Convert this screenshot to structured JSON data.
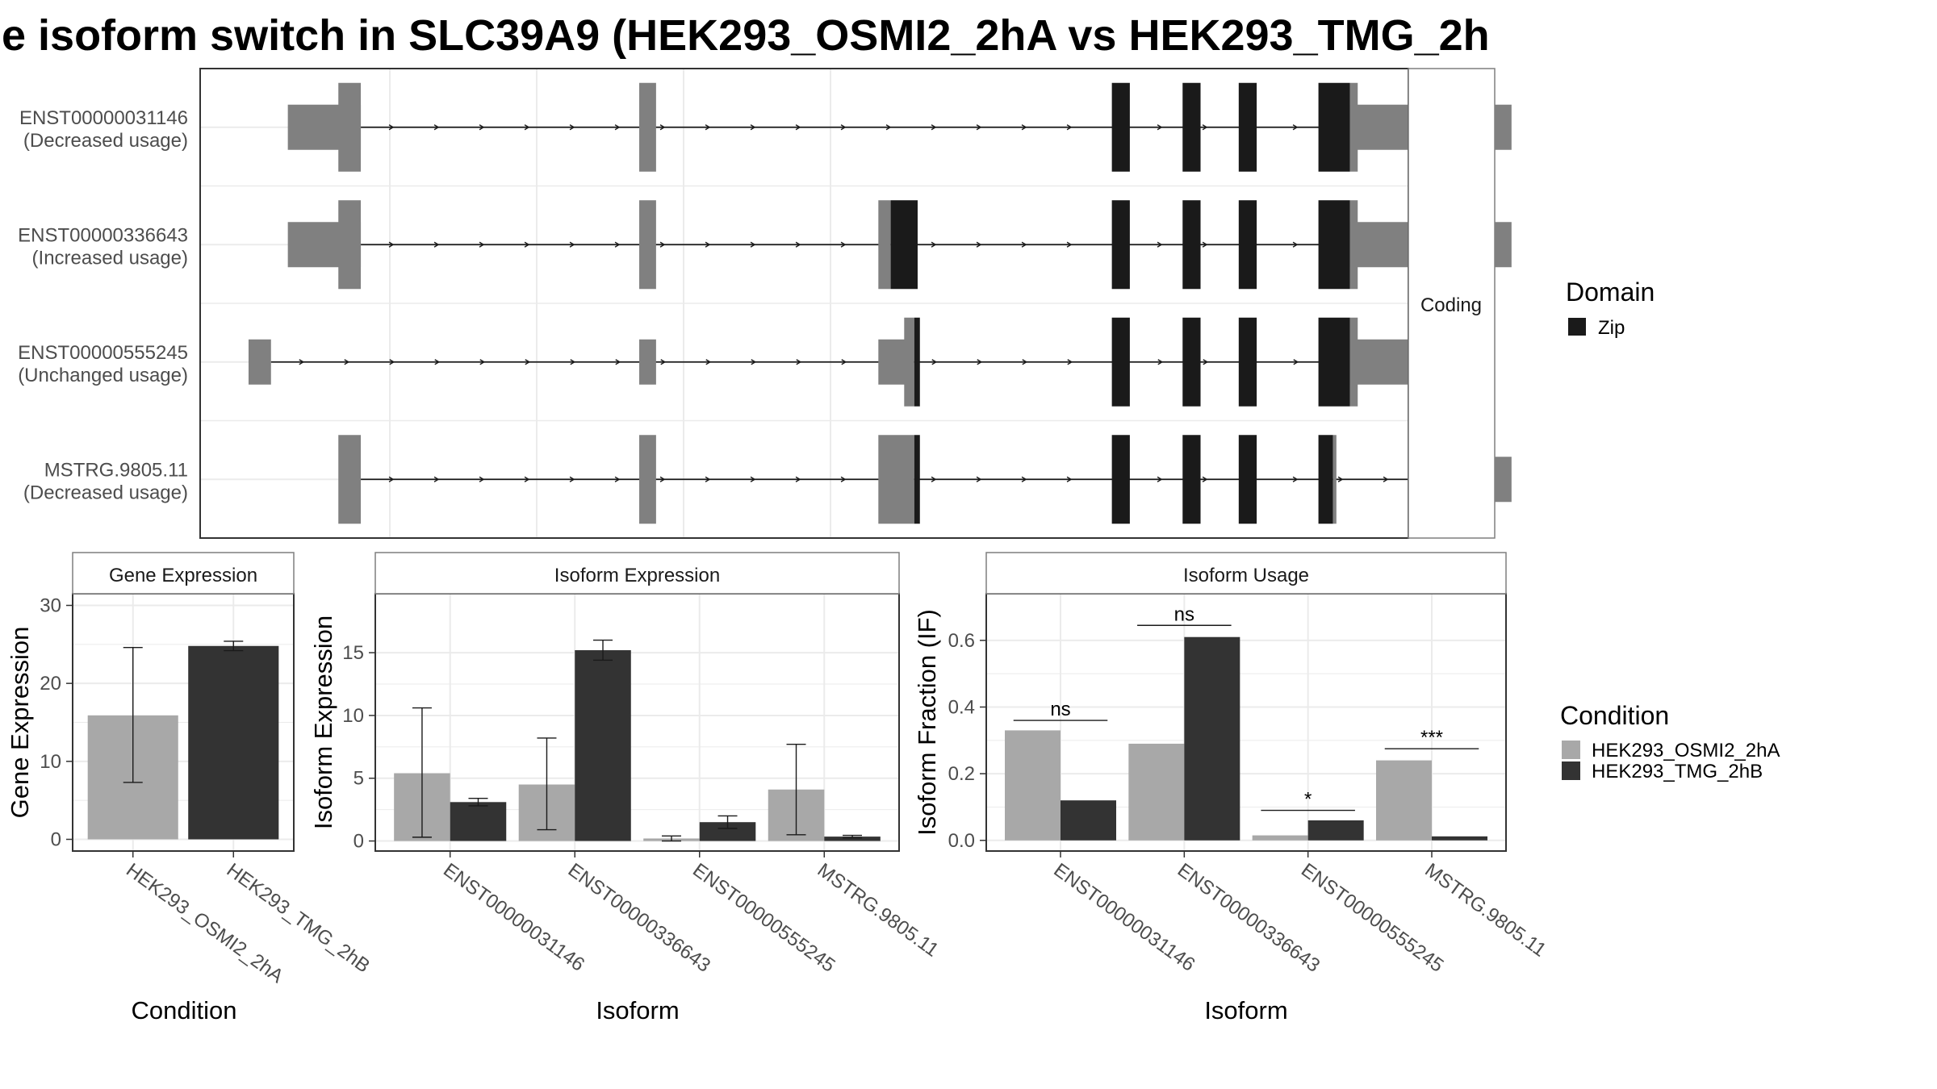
{
  "title": "e isoform switch in SLC39A9 (HEK293_OSMI2_2hA vs HEK293_TMG_2h",
  "colors": {
    "cond_a": "#a8a8a8",
    "cond_b": "#333333",
    "exon": "#808080",
    "domain_zip": "#1a1a1a",
    "grid": "#ebebeb",
    "frame": "#333333",
    "strip_bg": "#ffffff",
    "strip_border": "#7f7f7f"
  },
  "chart_data": [
    {
      "type": "gene_structure",
      "facet_label": "Coding",
      "legend": {
        "title": "Domain",
        "items": [
          {
            "label": "Zip",
            "color": "#1a1a1a"
          }
        ]
      },
      "x_range": [
        0,
        1000
      ],
      "transcripts": [
        {
          "id": "ENST00000031146",
          "status": "(Decreased usage)",
          "intron": [
            105,
            1000
          ],
          "exons": [
            {
              "s": 40,
              "e": 105,
              "h": "mid",
              "t": "exon"
            },
            {
              "s": 85,
              "e": 105,
              "h": "tall",
              "t": "exon"
            },
            {
              "s": 353,
              "e": 368,
              "h": "tall",
              "t": "exon"
            },
            {
              "s": 774,
              "e": 790,
              "h": "tall",
              "t": "zip"
            },
            {
              "s": 837,
              "e": 853,
              "h": "tall",
              "t": "zip"
            },
            {
              "s": 887,
              "e": 903,
              "h": "tall",
              "t": "zip"
            },
            {
              "s": 958,
              "e": 986,
              "h": "tall",
              "t": "zip"
            },
            {
              "s": 986,
              "e": 1130,
              "h": "mid",
              "t": "exon"
            },
            {
              "s": 986,
              "e": 993,
              "h": "tall",
              "t": "exon"
            }
          ]
        },
        {
          "id": "ENST00000336643",
          "status": "(Increased usage)",
          "intron": [
            105,
            1000
          ],
          "exons": [
            {
              "s": 40,
              "e": 105,
              "h": "mid",
              "t": "exon"
            },
            {
              "s": 85,
              "e": 105,
              "h": "tall",
              "t": "exon"
            },
            {
              "s": 353,
              "e": 368,
              "h": "tall",
              "t": "exon"
            },
            {
              "s": 566,
              "e": 577,
              "h": "tall",
              "t": "exon"
            },
            {
              "s": 577,
              "e": 601,
              "h": "tall",
              "t": "zip"
            },
            {
              "s": 774,
              "e": 790,
              "h": "tall",
              "t": "zip"
            },
            {
              "s": 837,
              "e": 853,
              "h": "tall",
              "t": "zip"
            },
            {
              "s": 887,
              "e": 903,
              "h": "tall",
              "t": "zip"
            },
            {
              "s": 958,
              "e": 986,
              "h": "tall",
              "t": "zip"
            },
            {
              "s": 986,
              "e": 1130,
              "h": "mid",
              "t": "exon"
            },
            {
              "s": 986,
              "e": 993,
              "h": "tall",
              "t": "exon"
            }
          ]
        },
        {
          "id": "ENST00000555245",
          "status": "(Unchanged usage)",
          "intron": [
            25,
            1000
          ],
          "exons": [
            {
              "s": 5,
              "e": 25,
              "h": "mid",
              "t": "exon"
            },
            {
              "s": 353,
              "e": 368,
              "h": "mid",
              "t": "exon"
            },
            {
              "s": 566,
              "e": 590,
              "h": "mid",
              "t": "exon"
            },
            {
              "s": 589,
              "e": 598,
              "h": "tall",
              "t": "exon"
            },
            {
              "s": 598,
              "e": 603,
              "h": "tall",
              "t": "zip"
            },
            {
              "s": 774,
              "e": 790,
              "h": "tall",
              "t": "zip"
            },
            {
              "s": 837,
              "e": 853,
              "h": "tall",
              "t": "zip"
            },
            {
              "s": 887,
              "e": 903,
              "h": "tall",
              "t": "zip"
            },
            {
              "s": 958,
              "e": 986,
              "h": "tall",
              "t": "zip"
            },
            {
              "s": 986,
              "e": 1087,
              "h": "mid",
              "t": "exon"
            },
            {
              "s": 986,
              "e": 993,
              "h": "tall",
              "t": "exon"
            }
          ]
        },
        {
          "id": "MSTRG.9805.11",
          "status": "(Decreased usage)",
          "intron": [
            105,
            1090
          ],
          "exons": [
            {
              "s": 85,
              "e": 105,
              "h": "tall",
              "t": "exon"
            },
            {
              "s": 353,
              "e": 368,
              "h": "tall",
              "t": "exon"
            },
            {
              "s": 566,
              "e": 598,
              "h": "tall",
              "t": "exon"
            },
            {
              "s": 598,
              "e": 603,
              "h": "tall",
              "t": "zip"
            },
            {
              "s": 774,
              "e": 790,
              "h": "tall",
              "t": "zip"
            },
            {
              "s": 837,
              "e": 853,
              "h": "tall",
              "t": "zip"
            },
            {
              "s": 887,
              "e": 903,
              "h": "tall",
              "t": "zip"
            },
            {
              "s": 958,
              "e": 971,
              "h": "tall",
              "t": "zip"
            },
            {
              "s": 971,
              "e": 974,
              "h": "tall",
              "t": "exon"
            },
            {
              "s": 1090,
              "e": 1093,
              "h": "tall",
              "t": "exon"
            },
            {
              "s": 1093,
              "e": 1130,
              "h": "mid",
              "t": "exon"
            }
          ]
        }
      ]
    },
    {
      "type": "bar",
      "title": "Gene Expression",
      "xlabel": "Condition",
      "ylabel": "Gene Expression",
      "ylim": [
        -1.5,
        31.5
      ],
      "yticks": [
        0,
        10,
        20,
        30
      ],
      "categories": [
        "HEK293_OSMI2_2hA",
        "HEK293_TMG_2hB"
      ],
      "series": [
        {
          "values": [
            15.9,
            24.8
          ],
          "err_low": [
            7.3,
            24.2
          ],
          "err_high": [
            24.6,
            25.4
          ]
        }
      ]
    },
    {
      "type": "bar",
      "title": "Isoform Expression",
      "xlabel": "Isoform",
      "ylabel": "Isoform Expression",
      "ylim": [
        -0.8,
        19.7
      ],
      "yticks": [
        0,
        5,
        10,
        15
      ],
      "categories": [
        "ENST00000031146",
        "ENST00000336643",
        "ENST00000555245",
        "MSTRG.9805.11"
      ],
      "series": [
        {
          "name": "HEK293_OSMI2_2hA",
          "values": [
            5.4,
            4.5,
            0.2,
            4.1
          ],
          "err_low": [
            0.3,
            0.9,
            0.0,
            0.5
          ],
          "err_high": [
            10.6,
            8.2,
            0.4,
            7.7
          ]
        },
        {
          "name": "HEK293_TMG_2hB",
          "values": [
            3.1,
            15.2,
            1.5,
            0.35
          ],
          "err_low": [
            2.8,
            14.4,
            1.0,
            0.25
          ],
          "err_high": [
            3.4,
            16.0,
            2.0,
            0.45
          ]
        }
      ]
    },
    {
      "type": "bar",
      "title": "Isoform Usage",
      "xlabel": "Isoform",
      "ylabel": "Isoform Fraction (IF)",
      "ylim": [
        -0.032,
        0.74
      ],
      "yticks": [
        0.0,
        0.2,
        0.4,
        0.6
      ],
      "ytick_labels": [
        "0.0",
        "0.2",
        "0.4",
        "0.6"
      ],
      "categories": [
        "ENST00000031146",
        "ENST00000336643",
        "ENST00000555245",
        "MSTRG.9805.11"
      ],
      "series": [
        {
          "name": "HEK293_OSMI2_2hA",
          "values": [
            0.33,
            0.29,
            0.015,
            0.24
          ]
        },
        {
          "name": "HEK293_TMG_2hB",
          "values": [
            0.12,
            0.61,
            0.06,
            0.012
          ]
        }
      ],
      "significance": [
        {
          "label": "ns",
          "y": 0.36
        },
        {
          "label": "ns",
          "y": 0.645
        },
        {
          "label": "*",
          "y": 0.09
        },
        {
          "label": "***",
          "y": 0.275
        }
      ]
    }
  ],
  "condition_legend": {
    "title": "Condition",
    "items": [
      {
        "label": "HEK293_OSMI2_2hA",
        "color": "#a8a8a8"
      },
      {
        "label": "HEK293_TMG_2hB",
        "color": "#333333"
      }
    ]
  }
}
